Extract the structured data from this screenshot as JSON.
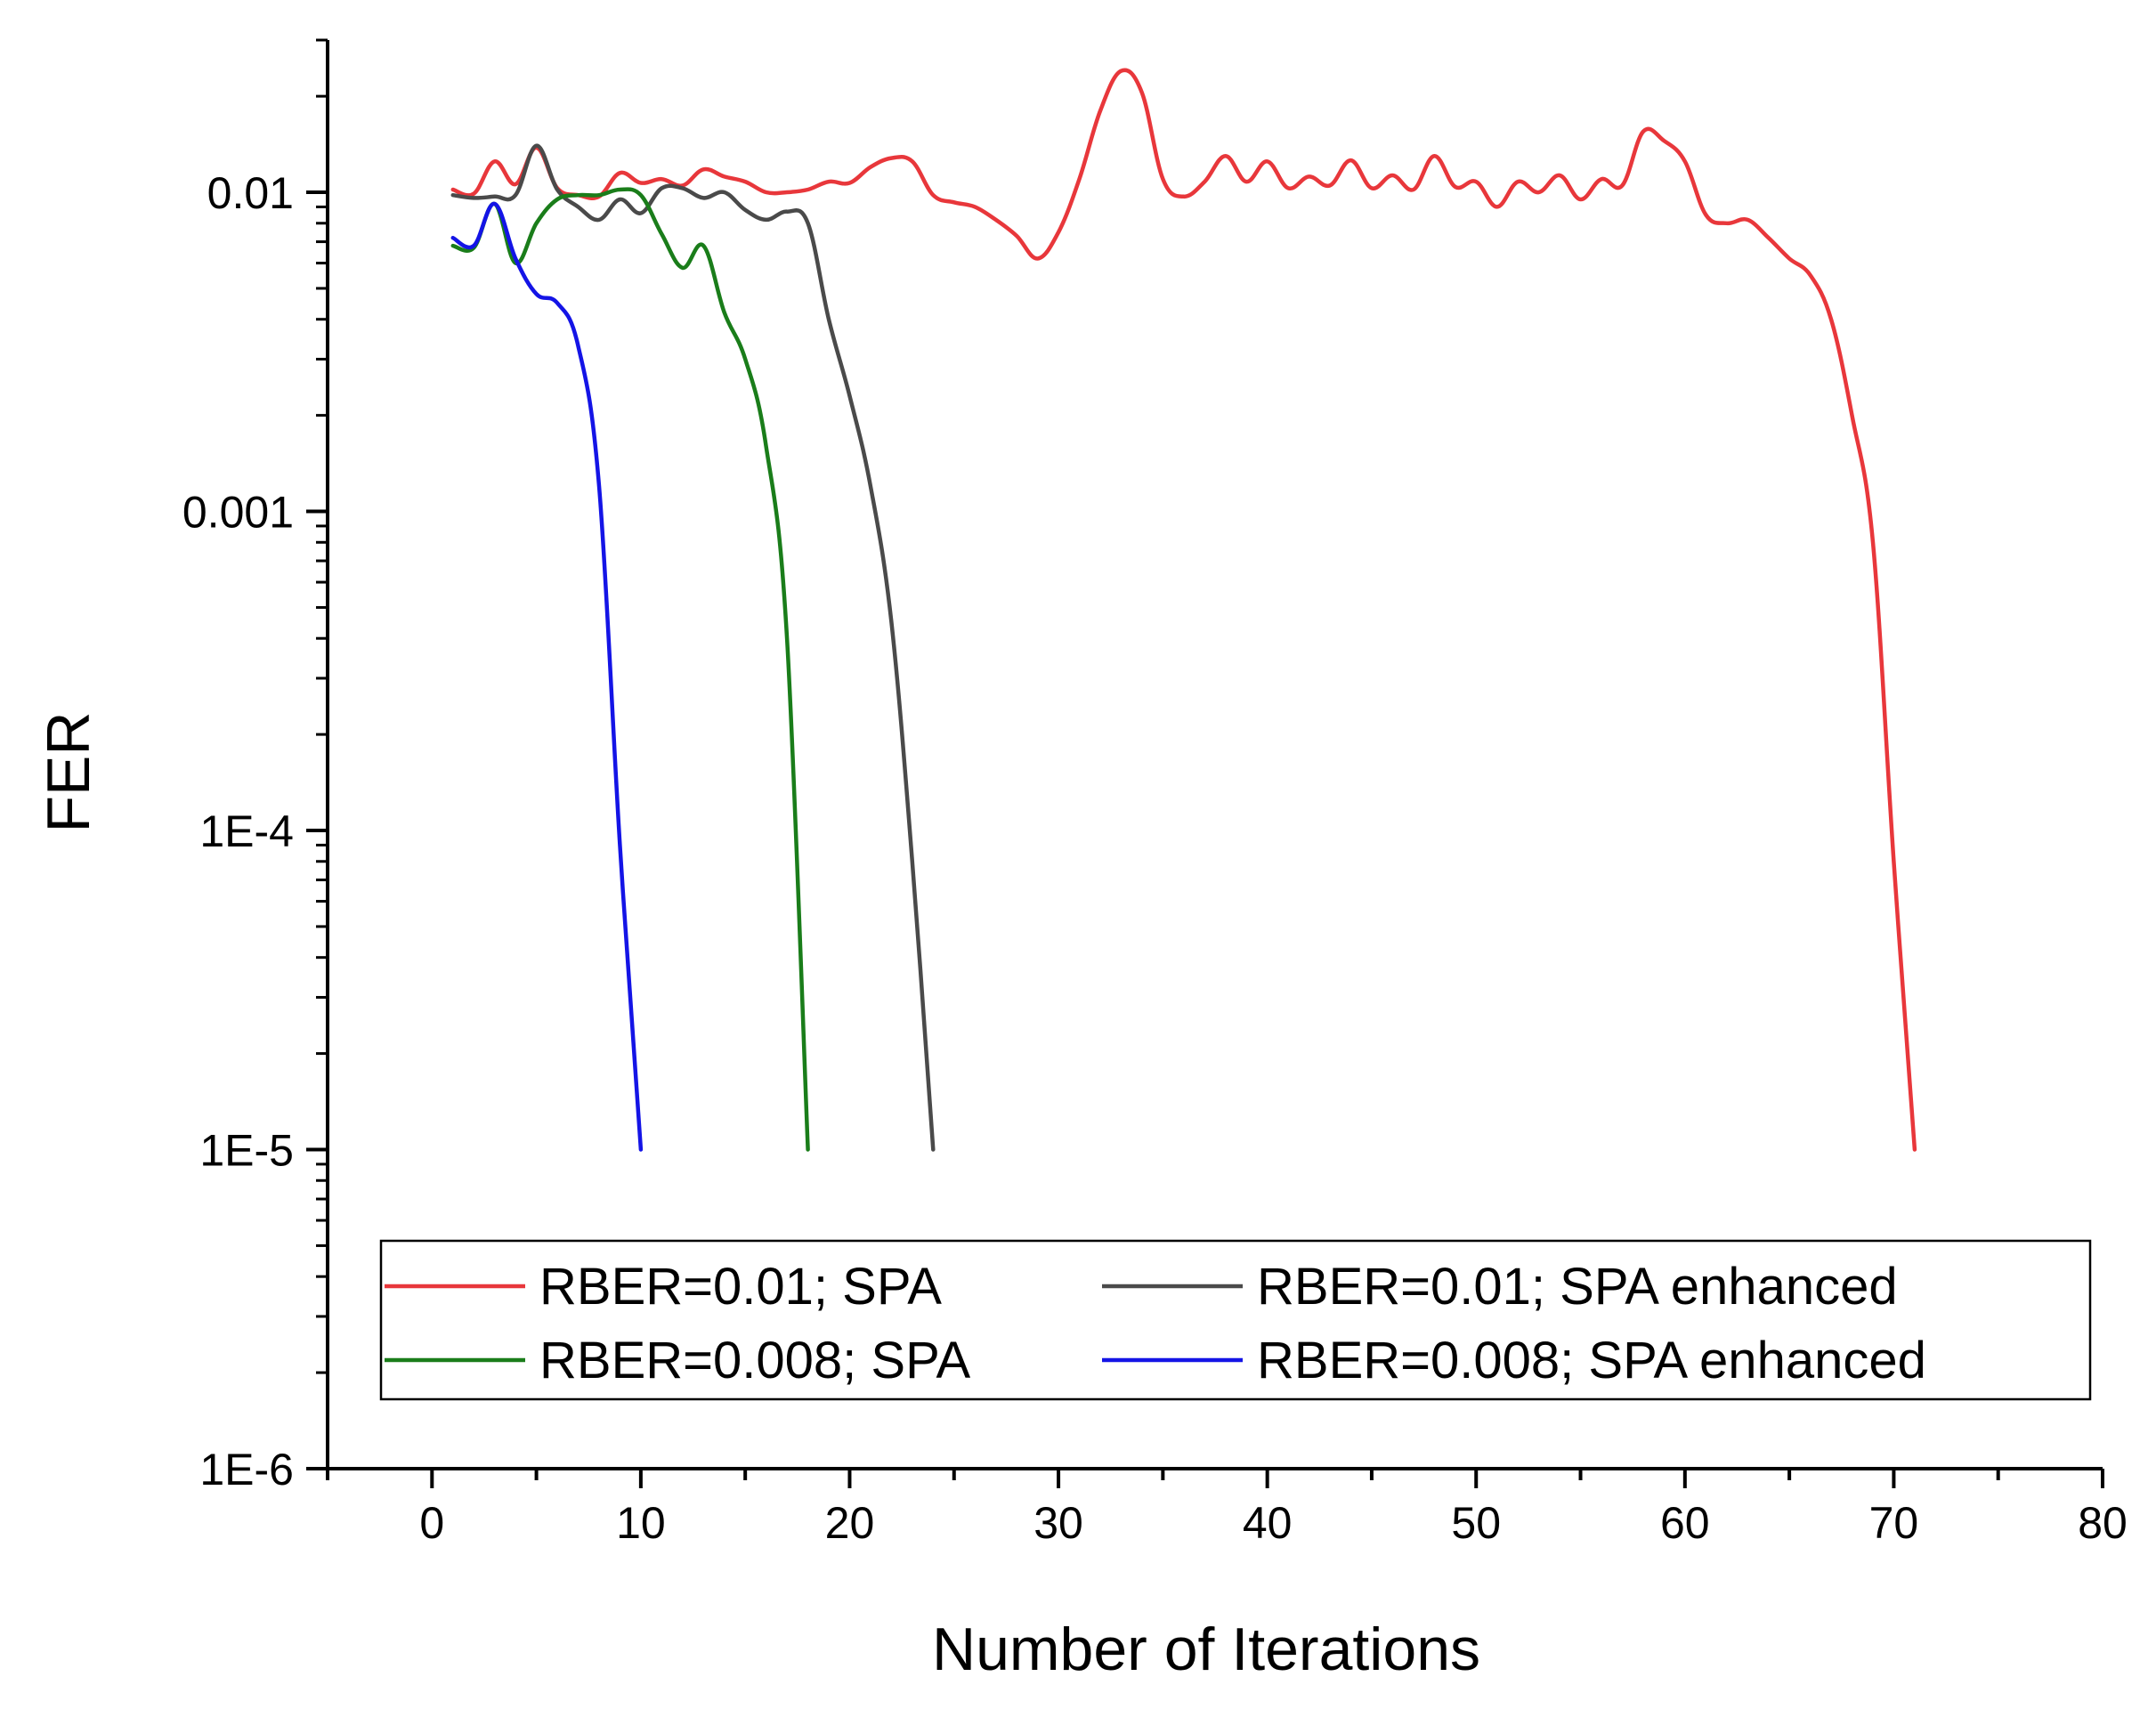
{
  "chart_data": {
    "type": "line",
    "title": "",
    "xlabel": "Number of Iterations",
    "ylabel": "FER",
    "xscale": "linear",
    "yscale": "log",
    "xlim": [
      -5,
      80
    ],
    "ylim": [
      1e-06,
      0.03
    ],
    "x_ticks": [
      0,
      10,
      20,
      30,
      40,
      50,
      60,
      70,
      80
    ],
    "x_tick_labels": [
      "0",
      "10",
      "20",
      "30",
      "40",
      "50",
      "60",
      "70",
      "80"
    ],
    "y_ticks": [
      1e-06,
      1e-05,
      0.0001,
      0.001,
      0.01
    ],
    "y_tick_labels": [
      "1E-6",
      "1E-5",
      "1E-4",
      "0.001",
      "0.01"
    ],
    "grid": false,
    "legend_position": "bottom",
    "series": [
      {
        "name": "RBER=0.01; SPA",
        "color": "#e8373b",
        "x": [
          1,
          2,
          3,
          4,
          5,
          6,
          7,
          8,
          9,
          10,
          11,
          12,
          13,
          14,
          15,
          16,
          17,
          18,
          19,
          20,
          21,
          22,
          23,
          24,
          25,
          26,
          27,
          28,
          29,
          30,
          31,
          32,
          33,
          34,
          35,
          36,
          37,
          38,
          39,
          40,
          41,
          42,
          43,
          44,
          45,
          46,
          47,
          48,
          49,
          50,
          51,
          52,
          53,
          54,
          55,
          56,
          57,
          58,
          59,
          60,
          61,
          62,
          63,
          64,
          65,
          66,
          67,
          68,
          69,
          70,
          71
        ],
        "y": [
          0.0102,
          0.0099,
          0.0125,
          0.0106,
          0.0138,
          0.0103,
          0.0098,
          0.0097,
          0.0115,
          0.0107,
          0.011,
          0.0105,
          0.0118,
          0.0112,
          0.0108,
          0.01,
          0.01,
          0.0102,
          0.0108,
          0.0107,
          0.012,
          0.0128,
          0.0125,
          0.0098,
          0.0093,
          0.009,
          0.0082,
          0.0073,
          0.0062,
          0.0075,
          0.011,
          0.018,
          0.024,
          0.0205,
          0.011,
          0.0097,
          0.0108,
          0.013,
          0.0108,
          0.0125,
          0.0103,
          0.0112,
          0.0105,
          0.0126,
          0.0103,
          0.0113,
          0.0102,
          0.013,
          0.0104,
          0.0108,
          0.009,
          0.0108,
          0.01,
          0.0113,
          0.0095,
          0.011,
          0.0105,
          0.0155,
          0.0145,
          0.0125,
          0.0085,
          0.008,
          0.0082,
          0.0072,
          0.0062,
          0.0055,
          0.004,
          0.002,
          0.0008,
          8e-05,
          1e-05
        ]
      },
      {
        "name": "RBER=0.01; SPA enhanced",
        "color": "#4a4a4a",
        "x": [
          1,
          2,
          3,
          4,
          5,
          6,
          7,
          8,
          9,
          10,
          11,
          12,
          13,
          14,
          15,
          16,
          17,
          18,
          19,
          20,
          21,
          22,
          23,
          24
        ],
        "y": [
          0.0098,
          0.0096,
          0.0097,
          0.0098,
          0.014,
          0.0102,
          0.009,
          0.0082,
          0.0095,
          0.0086,
          0.0103,
          0.0103,
          0.0096,
          0.01,
          0.0088,
          0.0082,
          0.0087,
          0.008,
          0.004,
          0.0023,
          0.0012,
          0.00045,
          8e-05,
          1e-05
        ]
      },
      {
        "name": "RBER=0.008; SPA",
        "color": "#1a7d1a",
        "x": [
          1,
          2,
          3,
          4,
          5,
          6,
          7,
          8,
          9,
          10,
          11,
          12,
          13,
          14,
          15,
          16,
          17,
          18
        ],
        "y": [
          0.0068,
          0.0067,
          0.0092,
          0.006,
          0.008,
          0.0095,
          0.0098,
          0.0098,
          0.0102,
          0.0098,
          0.0074,
          0.0058,
          0.0068,
          0.0042,
          0.003,
          0.0016,
          0.0004,
          1e-05
        ]
      },
      {
        "name": "RBER=0.008; SPA enhanced",
        "color": "#1414e6",
        "x": [
          1,
          2,
          3,
          4,
          5,
          6,
          7,
          8,
          9,
          10
        ],
        "y": [
          0.0072,
          0.0068,
          0.0092,
          0.0062,
          0.0048,
          0.0045,
          0.0033,
          0.0012,
          9e-05,
          1e-05
        ]
      }
    ]
  }
}
